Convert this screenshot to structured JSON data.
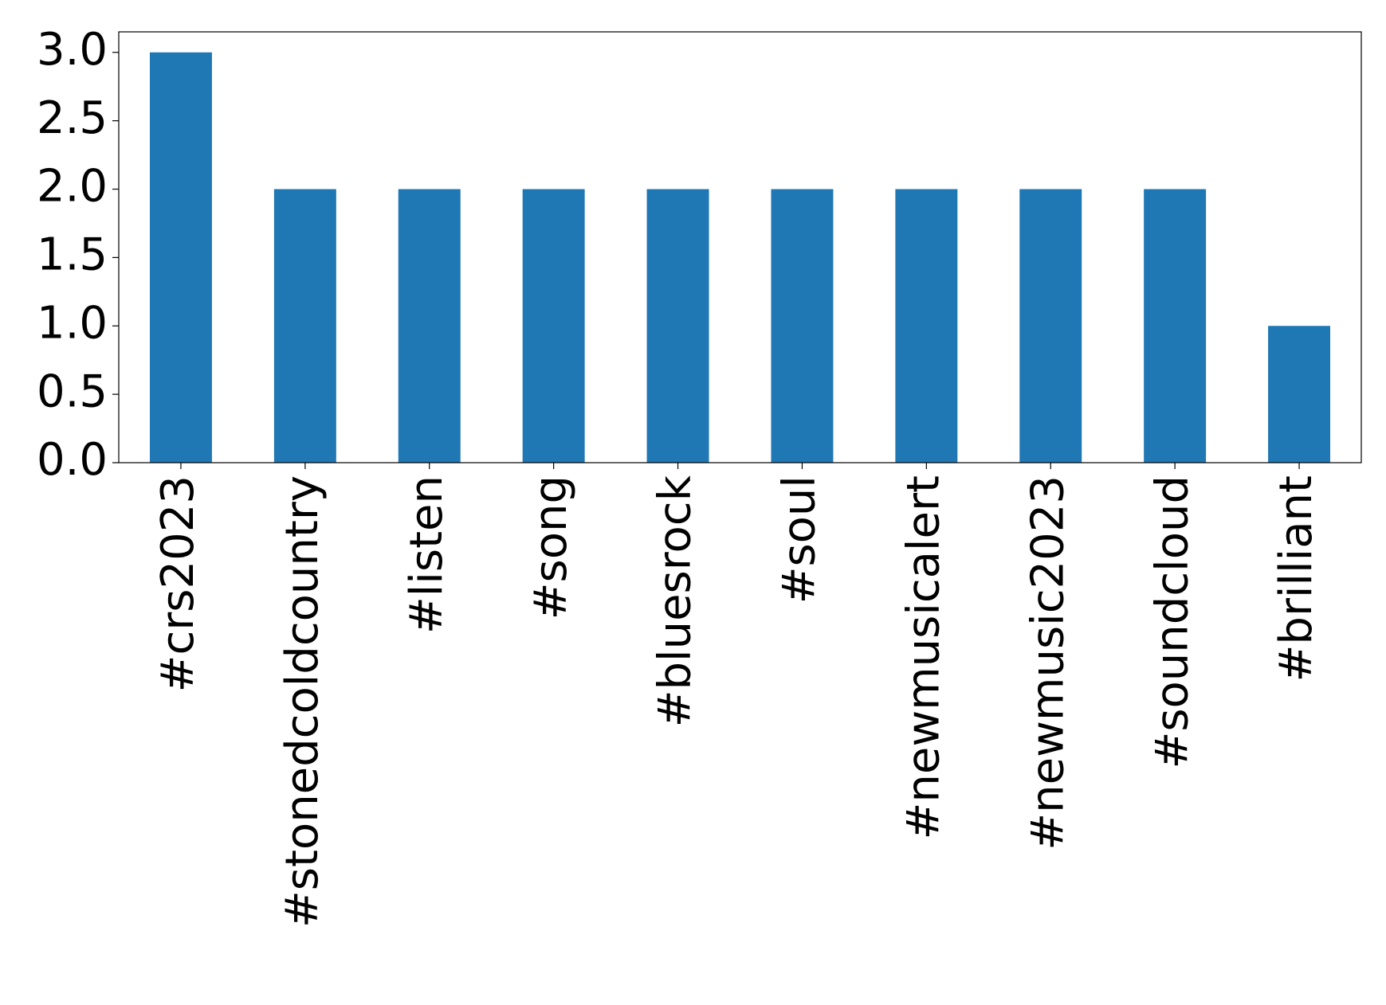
{
  "chart_data": {
    "type": "bar",
    "categories": [
      "#crs2023",
      "#stonedcoldcountry",
      "#listen",
      "#song",
      "#bluesrock",
      "#soul",
      "#newmusicalert",
      "#newmusic2023",
      "#soundcloud",
      "#brilliant"
    ],
    "values": [
      3,
      2,
      2,
      2,
      2,
      2,
      2,
      2,
      2,
      1
    ],
    "color": "#1f77b4",
    "ylim": [
      0,
      3.15
    ],
    "yticks": [
      {
        "value": 0,
        "label": "0.0"
      },
      {
        "value": 0.5,
        "label": "0.5"
      },
      {
        "value": 1,
        "label": "1.0"
      },
      {
        "value": 1.5,
        "label": "1.5"
      },
      {
        "value": 2,
        "label": "2.0"
      },
      {
        "value": 2.5,
        "label": "2.5"
      },
      {
        "value": 3,
        "label": "3.0"
      }
    ],
    "grid": false
  }
}
